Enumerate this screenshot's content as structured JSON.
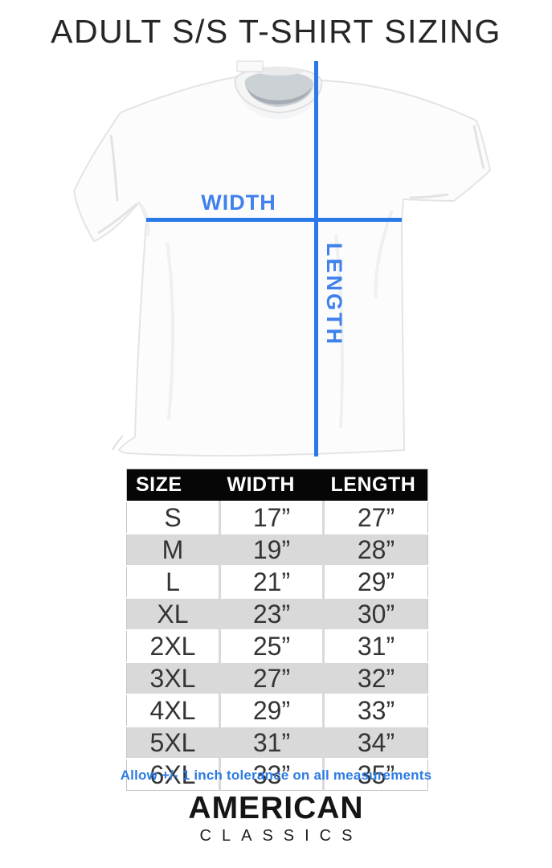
{
  "page": {
    "title": "ADULT S/S T-SHIRT SIZING",
    "background_color": "#ffffff"
  },
  "diagram": {
    "width_label": "WIDTH",
    "length_label": "LENGTH",
    "line_color": "#2a79e8",
    "label_color": "#4181ec"
  },
  "size_table": {
    "headers": [
      "SIZE",
      "WIDTH",
      "LENGTH"
    ],
    "rows": [
      [
        "S",
        "17”",
        "27”"
      ],
      [
        "M",
        "19”",
        "28”"
      ],
      [
        "L",
        "21”",
        "29”"
      ],
      [
        "XL",
        "23”",
        "30”"
      ],
      [
        "2XL",
        "25”",
        "31”"
      ],
      [
        "3XL",
        "27”",
        "32”"
      ],
      [
        "4XL",
        "29”",
        "33”"
      ],
      [
        "5XL",
        "31”",
        "34”"
      ],
      [
        "6XL",
        "33”",
        "35”"
      ]
    ],
    "header_bg": "#060606",
    "header_text_color": "#ffffff",
    "alt_row_color": "#d9d9d9"
  },
  "note": {
    "text": "Allow +/- 1 inch tolerance on all measurements",
    "color": "#2d7ce4"
  },
  "brand": {
    "name_line1": "AMERICAN",
    "name_line2": "CLASSICS"
  }
}
